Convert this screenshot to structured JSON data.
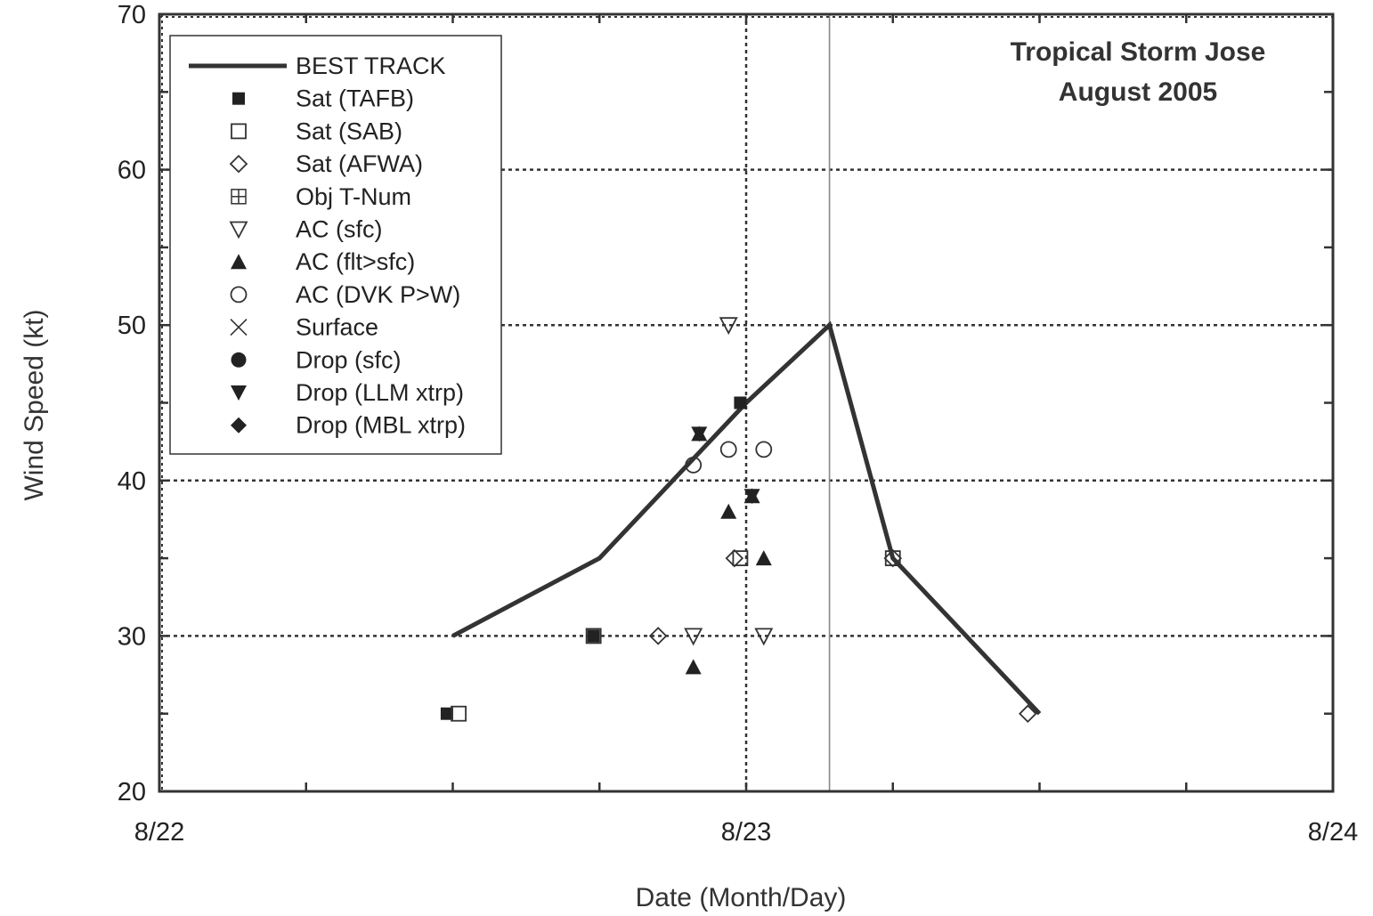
{
  "chart_data": {
    "type": "scatter",
    "title": [
      "Tropical Storm Jose",
      "August 2005"
    ],
    "xlabel": "Date (Month/Day)",
    "ylabel": "Wind Speed (kt)",
    "xlim": [
      0,
      2
    ],
    "ylim": [
      20,
      70
    ],
    "x_ticks": [
      {
        "value": 0,
        "label": "8/22"
      },
      {
        "value": 1,
        "label": "8/23"
      },
      {
        "value": 2,
        "label": "8/24"
      }
    ],
    "x_minor_step": 0.25,
    "y_ticks": [
      {
        "value": 20,
        "label": "20"
      },
      {
        "value": 30,
        "label": "30"
      },
      {
        "value": 40,
        "label": "40"
      },
      {
        "value": 50,
        "label": "50"
      },
      {
        "value": 60,
        "label": "60"
      },
      {
        "value": 70,
        "label": "70"
      }
    ],
    "y_minor_step": 5,
    "grid": "dotted",
    "grid_y": [
      30,
      40,
      50,
      60
    ],
    "grid_x": [
      1.0
    ],
    "reference_line_x": 1.142,
    "legend_position": "top-left",
    "line_color": "#333333",
    "series": [
      {
        "name": "BEST TRACK",
        "marker": "line",
        "x": [
          0.5,
          0.75,
          1.0,
          1.142,
          1.25,
          1.5
        ],
        "y": [
          30,
          35,
          45,
          50,
          35,
          25
        ]
      },
      {
        "name": "Sat (TAFB)",
        "marker": "filled-square",
        "x": [
          0.49,
          0.74,
          0.99
        ],
        "y": [
          25,
          30,
          45
        ]
      },
      {
        "name": "Sat (SAB)",
        "marker": "open-square",
        "x": [
          0.51,
          0.74,
          0.99,
          1.25
        ],
        "y": [
          25,
          30,
          35,
          35
        ]
      },
      {
        "name": "Sat (AFWA)",
        "marker": "open-diamond",
        "x": [
          0.85,
          0.98,
          1.25,
          1.48
        ],
        "y": [
          30,
          35,
          35,
          25
        ]
      },
      {
        "name": "Obj T-Num",
        "marker": "boxed-plus",
        "x": [],
        "y": []
      },
      {
        "name": "AC (sfc)",
        "marker": "open-triangle-down",
        "x": [
          0.91,
          0.97,
          1.03
        ],
        "y": [
          30,
          50,
          30
        ]
      },
      {
        "name": "AC (flt>sfc)",
        "marker": "filled-triangle-up",
        "x": [
          0.91,
          0.92,
          0.97,
          1.01,
          1.03
        ],
        "y": [
          28,
          43,
          38,
          39,
          35
        ]
      },
      {
        "name": "AC (DVK P>W)",
        "marker": "open-circle",
        "x": [
          0.91,
          0.97,
          1.03
        ],
        "y": [
          41,
          42,
          42
        ]
      },
      {
        "name": "Surface",
        "marker": "x",
        "x": [],
        "y": []
      },
      {
        "name": "Drop (sfc)",
        "marker": "filled-circle",
        "x": [],
        "y": []
      },
      {
        "name": "Drop (LLM xtrp)",
        "marker": "filled-triangle-down",
        "x": [
          0.92,
          1.01
        ],
        "y": [
          43,
          39
        ]
      },
      {
        "name": "Drop (MBL xtrp)",
        "marker": "filled-diamond",
        "x": [],
        "y": []
      }
    ]
  }
}
